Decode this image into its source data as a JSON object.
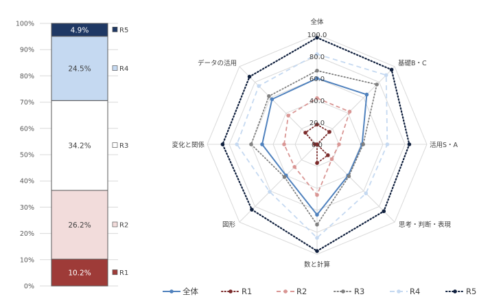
{
  "chart_data": [
    {
      "type": "bar",
      "stacked": true,
      "ylim": [
        0,
        100
      ],
      "yticks": [
        "0%",
        "10%",
        "20%",
        "30%",
        "40%",
        "50%",
        "60%",
        "70%",
        "80%",
        "90%",
        "100%"
      ],
      "series": [
        {
          "name": "R1",
          "value": 10.2,
          "label": "10.2%",
          "color": "#9e3b38",
          "label_color": "#ffffff"
        },
        {
          "name": "R2",
          "value": 26.2,
          "label": "26.2%",
          "color": "#f2dcdb",
          "label_color": "#404040"
        },
        {
          "name": "R3",
          "value": 34.2,
          "label": "34.2%",
          "color": "#ffffff",
          "label_color": "#404040"
        },
        {
          "name": "R4",
          "value": 24.5,
          "label": "24.5%",
          "color": "#c5d9f1",
          "label_color": "#404040"
        },
        {
          "name": "R5",
          "value": 4.9,
          "label": "4.9%",
          "color": "#1f3864",
          "label_color": "#ffffff"
        }
      ]
    },
    {
      "type": "radar",
      "axes": [
        "全体",
        "基礎B・C",
        "活用S・A",
        "思考・判断・表現",
        "数と計算",
        "図形",
        "変化と関係",
        "データの活用"
      ],
      "rmin": 0,
      "rmax": 100,
      "ticks": [
        "0.0",
        "20.0",
        "40.0",
        "60.0",
        "80.0",
        "100.0"
      ],
      "series": [
        {
          "name": "全体",
          "values": [
            60,
            64,
            41,
            40,
            64,
            40,
            50,
            58
          ],
          "color": "#4f81bd",
          "dash": "",
          "marker": "circle"
        },
        {
          "name": "R1",
          "values": [
            18,
            16,
            0,
            14,
            17,
            0,
            2,
            15
          ],
          "color": "#7b2a2a",
          "dash": "1.5,3",
          "marker": "circle"
        },
        {
          "name": "R2",
          "values": [
            42,
            42,
            20,
            19,
            46,
            29,
            30,
            37
          ],
          "color": "#d99694",
          "dash": "6,4",
          "marker": "circle"
        },
        {
          "name": "R3",
          "values": [
            67,
            77,
            42,
            41,
            73,
            42,
            60,
            62
          ],
          "color": "#808080",
          "dash": "1.5,3",
          "marker": "circle"
        },
        {
          "name": "R4",
          "values": [
            82,
            89,
            64,
            63,
            85,
            61,
            73,
            75
          ],
          "color": "#c5d9f1",
          "dash": "7,5",
          "marker": "circle"
        },
        {
          "name": "R5",
          "values": [
            97,
            96,
            84,
            86,
            97,
            84,
            86,
            87
          ],
          "color": "#0f1f3d",
          "dash": "1.5,3",
          "marker": "circle"
        }
      ]
    }
  ]
}
